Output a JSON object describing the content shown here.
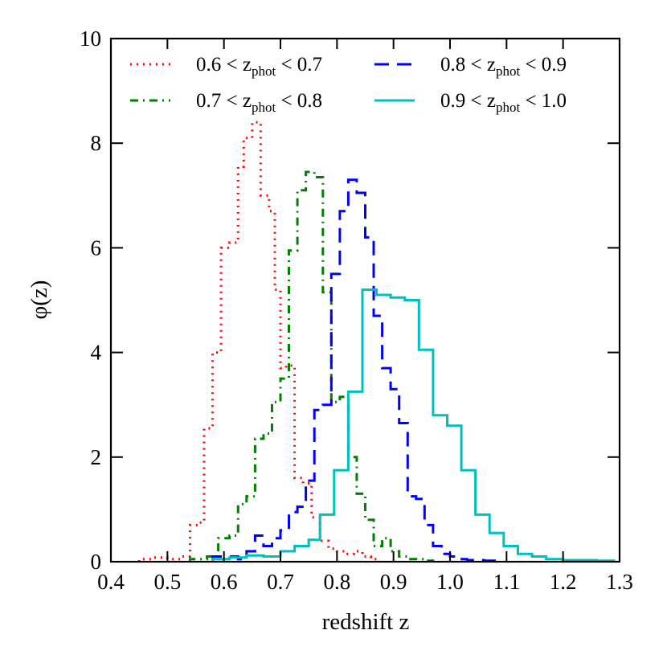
{
  "chart_data": {
    "type": "line",
    "style": "step-histogram",
    "xlabel": "redshift z",
    "ylabel": "φ(z)",
    "xlim": [
      0.4,
      1.3
    ],
    "ylim": [
      0,
      10
    ],
    "xticks": [
      0.4,
      0.5,
      0.6,
      0.7,
      0.8,
      0.9,
      1.0,
      1.1,
      1.2,
      1.3
    ],
    "xtick_labels": [
      "0.4",
      "0.5",
      "0.6",
      "0.7",
      "0.8",
      "0.9",
      "1.0",
      "1.1",
      "1.2",
      "1.3"
    ],
    "yticks": [
      0,
      2,
      4,
      6,
      8,
      10
    ],
    "ytick_labels": [
      "0",
      "2",
      "4",
      "6",
      "8",
      "10"
    ],
    "grid": false,
    "legend_position": "top",
    "series": [
      {
        "name": "0.6 < z_phot < 0.7",
        "label_main": "0.6 < z",
        "label_sub": "phot",
        "label_tail": " < 0.7",
        "color": "#ff0000",
        "dash": "2,6",
        "edges": [
          0.45,
          0.475,
          0.5,
          0.525,
          0.54,
          0.555,
          0.565,
          0.58,
          0.595,
          0.61,
          0.625,
          0.635,
          0.65,
          0.665,
          0.68,
          0.69,
          0.7,
          0.71,
          0.725,
          0.74,
          0.755,
          0.77,
          0.785,
          0.8,
          0.815,
          0.83,
          0.845,
          0.86,
          0.875
        ],
        "values": [
          0.05,
          0.08,
          0.05,
          0.1,
          0.7,
          0.75,
          2.55,
          4.0,
          6.0,
          6.1,
          7.55,
          8.1,
          8.4,
          7.0,
          6.7,
          5.2,
          3.7,
          3.75,
          1.6,
          1.5,
          0.85,
          0.4,
          0.25,
          0.2,
          0.15,
          0.2,
          0.1,
          0.05
        ]
      },
      {
        "name": "0.7 < z_phot < 0.8",
        "label_main": "0.7 < z",
        "label_sub": "phot",
        "label_tail": " < 0.8",
        "color": "#008000",
        "dash": "10,6,2,6",
        "edges": [
          0.54,
          0.57,
          0.59,
          0.61,
          0.625,
          0.64,
          0.655,
          0.67,
          0.685,
          0.7,
          0.715,
          0.73,
          0.745,
          0.76,
          0.775,
          0.79,
          0.805,
          0.82,
          0.835,
          0.85,
          0.865,
          0.88,
          0.895,
          0.91,
          0.925,
          0.94,
          0.955,
          0.97
        ],
        "values": [
          0.05,
          0.1,
          0.45,
          0.5,
          1.1,
          1.25,
          2.35,
          2.45,
          3.05,
          3.5,
          5.95,
          7.1,
          7.45,
          7.35,
          5.15,
          3.05,
          3.15,
          2.0,
          1.3,
          0.8,
          0.3,
          0.45,
          0.2,
          0.1,
          0.05,
          0.05,
          0.02
        ]
      },
      {
        "name": "0.8 < z_phot < 0.9",
        "label_main": "0.8 < z",
        "label_sub": "phot",
        "label_tail": " < 0.9",
        "color": "#0000ff",
        "dash": "18,10",
        "edges": [
          0.58,
          0.625,
          0.64,
          0.655,
          0.67,
          0.685,
          0.7,
          0.715,
          0.73,
          0.745,
          0.76,
          0.775,
          0.79,
          0.805,
          0.82,
          0.835,
          0.85,
          0.865,
          0.88,
          0.895,
          0.91,
          0.925,
          0.94,
          0.955,
          0.97,
          0.985,
          1.0,
          1.015,
          1.03,
          1.06,
          1.09
        ],
        "values": [
          0.1,
          0.05,
          0.2,
          0.5,
          0.3,
          0.45,
          0.6,
          0.95,
          1.05,
          1.55,
          2.9,
          3.0,
          5.5,
          6.7,
          7.3,
          7.05,
          6.2,
          4.7,
          3.7,
          3.3,
          2.65,
          1.25,
          1.2,
          0.7,
          0.3,
          0.15,
          0.1,
          0.05,
          0.03,
          0.02
        ]
      },
      {
        "name": "0.9 < z_phot < 1.0",
        "label_main": "0.9 < z",
        "label_sub": "phot",
        "label_tail": " < 1.0",
        "color": "#00bfbf",
        "dash": "",
        "edges": [
          0.58,
          0.61,
          0.64,
          0.67,
          0.7,
          0.725,
          0.75,
          0.77,
          0.795,
          0.82,
          0.845,
          0.87,
          0.895,
          0.92,
          0.945,
          0.97,
          0.995,
          1.02,
          1.045,
          1.07,
          1.095,
          1.12,
          1.145,
          1.17,
          1.2,
          1.23,
          1.26,
          1.29
        ],
        "values": [
          0.05,
          0.08,
          0.12,
          0.1,
          0.2,
          0.3,
          0.42,
          0.9,
          1.75,
          3.25,
          5.2,
          5.1,
          5.05,
          5.0,
          4.05,
          2.8,
          2.6,
          1.75,
          0.9,
          0.55,
          0.3,
          0.15,
          0.1,
          0.05,
          0.03,
          0.03,
          0.02
        ]
      }
    ]
  }
}
